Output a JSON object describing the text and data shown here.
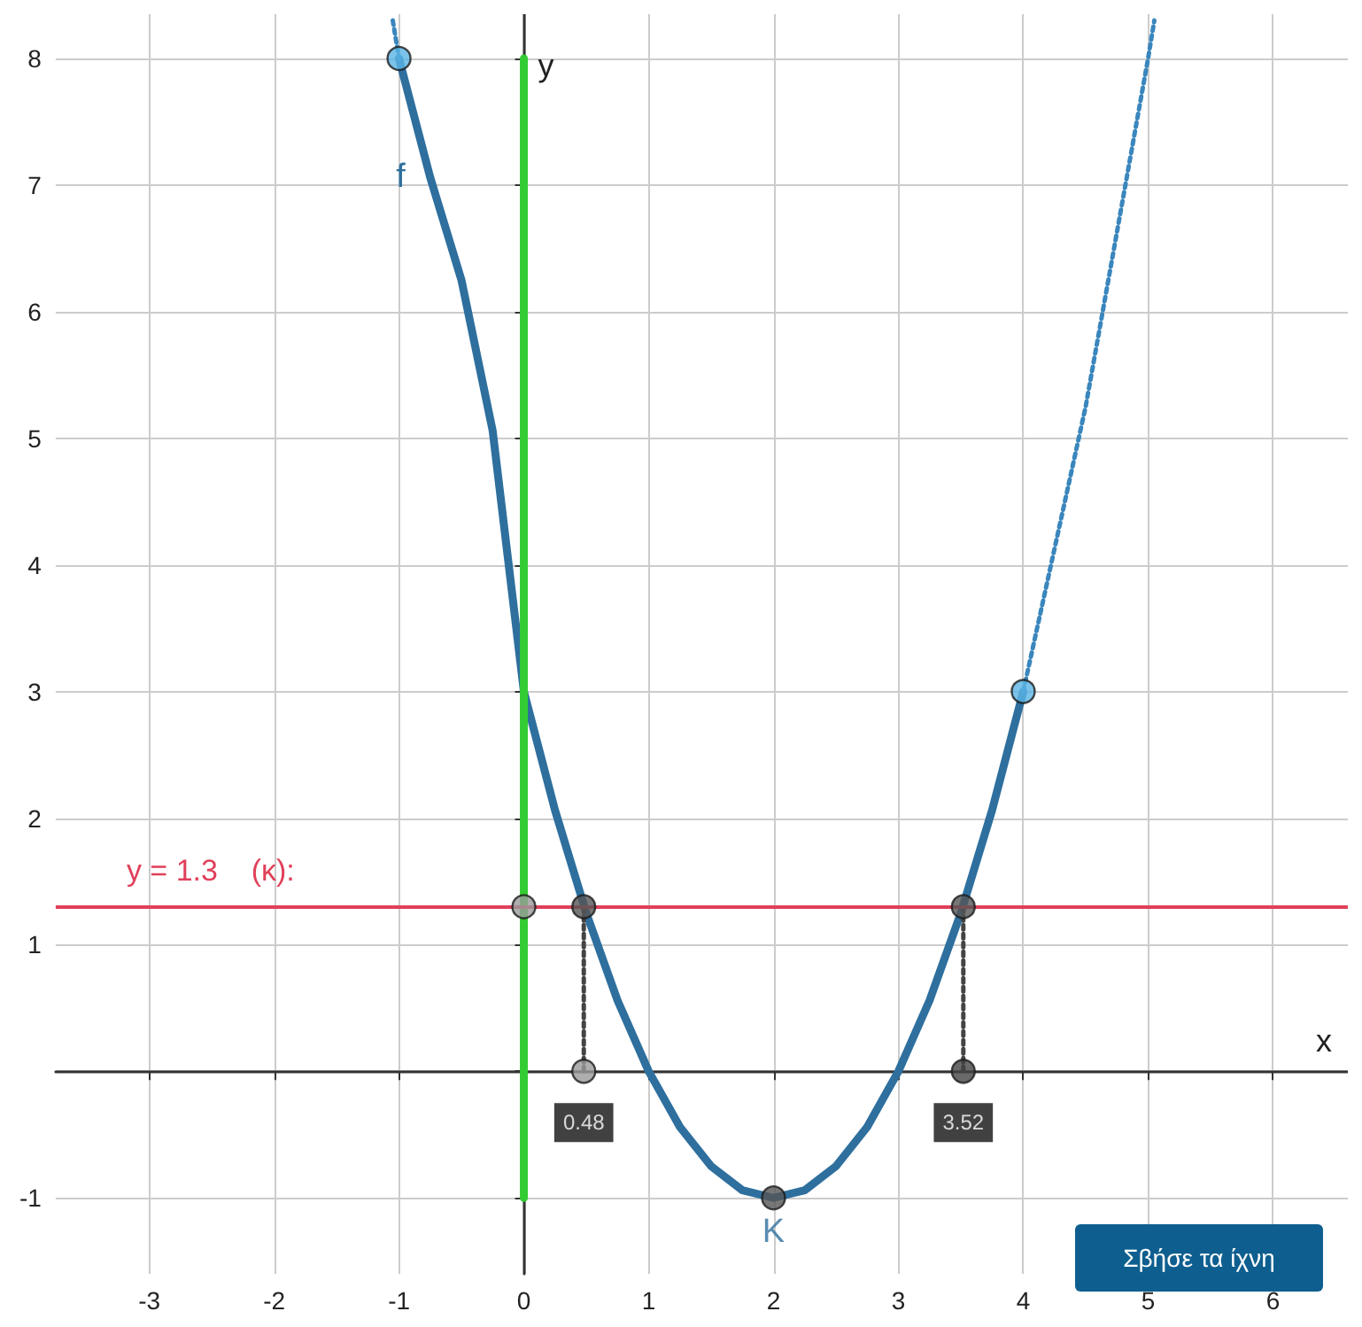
{
  "chart_data": {
    "type": "line",
    "xlabel": "x",
    "ylabel": "y",
    "xlim": [
      -3.75,
      6.6
    ],
    "ylim": [
      -1.6,
      8.35
    ],
    "xticks": [
      -3,
      -2,
      -1,
      0,
      1,
      2,
      3,
      4,
      5,
      6
    ],
    "yticks": [
      -1,
      {
        "value": 0,
        "label": null
      },
      1,
      2,
      3,
      4,
      5,
      6,
      7,
      8
    ],
    "grid": true,
    "series": [
      {
        "name": "f",
        "color": "#2e6f9e",
        "line_style": "solid",
        "marker": "none",
        "x": [
          -1,
          -0.75,
          -0.5,
          -0.25,
          0,
          0.25,
          0.5,
          0.75,
          1,
          1.25,
          1.5,
          1.75,
          2,
          2.25,
          2.5,
          2.75,
          3,
          3.25,
          3.5,
          3.75,
          4
        ],
        "values": [
          8,
          7.06,
          6.25,
          5.06,
          3,
          2.06,
          1.25,
          0.56,
          0,
          -0.44,
          -0.75,
          -0.94,
          -1,
          -0.94,
          -0.75,
          -0.44,
          0,
          0.56,
          1.25,
          2.06,
          3
        ]
      },
      {
        "color": "#3a86bd",
        "line_style": "dotted",
        "marker": "none",
        "x": [
          -1.05,
          -1
        ],
        "values": [
          8.3,
          8
        ]
      },
      {
        "color": "#3a86bd",
        "line_style": "dotted",
        "marker": "none",
        "x": [
          4,
          4.5,
          5,
          5.05
        ],
        "values": [
          3,
          5.25,
          8,
          8.3
        ]
      },
      {
        "color": "#33cc33",
        "line_style": "solid",
        "marker": "none",
        "x": [
          0,
          0
        ],
        "values": [
          -1,
          8
        ]
      },
      {
        "color": "#444444",
        "line_style": "dotted",
        "marker": "none",
        "x": [
          0.48,
          0.48
        ],
        "values": [
          0,
          1.3
        ]
      },
      {
        "color": "#444444",
        "line_style": "dotted",
        "marker": "none",
        "x": [
          3.52,
          3.52
        ],
        "values": [
          0,
          1.3
        ]
      },
      {
        "type": "scatter",
        "marker": "circle",
        "color": "#5ab4e5",
        "x": [
          -1,
          4
        ],
        "values": [
          8,
          3
        ]
      },
      {
        "type": "scatter",
        "name": "K",
        "marker": "circle",
        "color": "#555555",
        "x": [
          2
        ],
        "values": [
          -1
        ]
      },
      {
        "type": "scatter",
        "marker": "circle",
        "color": "#555555",
        "x": [
          0.48,
          3.52
        ],
        "values": [
          1.3,
          1.3
        ]
      },
      {
        "type": "scatter",
        "marker": "circle",
        "colors": [
          "#9a9a9a",
          "#444444"
        ],
        "x": [
          0.48,
          3.52
        ],
        "values": [
          0,
          0
        ]
      },
      {
        "type": "scatter",
        "marker": "circle",
        "color": "#9a9a9a",
        "x": [
          0
        ],
        "values": [
          1.3
        ]
      }
    ],
    "ref_lines": [
      {
        "axis": "y",
        "value": 1.3,
        "label": "y = 1.3    (κ):",
        "color": "#e0405a"
      }
    ],
    "annotations": [
      {
        "text": "0.48",
        "x": 0.48,
        "y": 0
      },
      {
        "text": "3.52",
        "x": 3.52,
        "y": 0
      },
      "Σβήσε τα ίχνη"
    ]
  }
}
